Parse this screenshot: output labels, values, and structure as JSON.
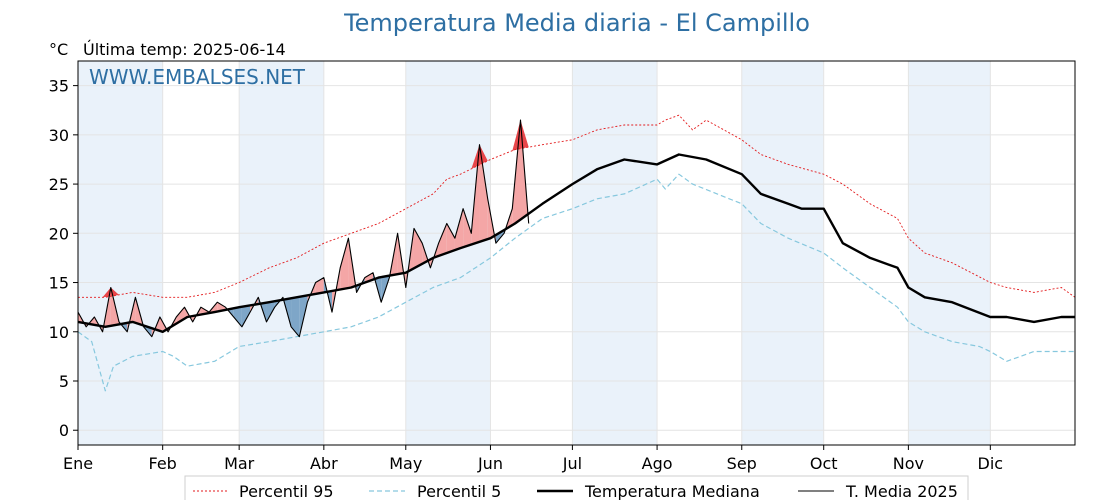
{
  "chart_data": {
    "type": "line",
    "title": "Temperatura Media diaria - El Campillo",
    "unit_label": "°C",
    "last_update": "Última temp: 2025-06-14",
    "watermark": "WWW.EMBALSES.NET",
    "ylim": [
      -1.5,
      37.5
    ],
    "y_ticks": [
      0,
      5,
      10,
      15,
      20,
      25,
      30,
      35
    ],
    "x_range_days": [
      0,
      365
    ],
    "months": [
      {
        "label": "Ene",
        "day": 0
      },
      {
        "label": "Feb",
        "day": 31
      },
      {
        "label": "Mar",
        "day": 59
      },
      {
        "label": "Abr",
        "day": 90
      },
      {
        "label": "May",
        "day": 120
      },
      {
        "label": "Jun",
        "day": 151
      },
      {
        "label": "Jul",
        "day": 181
      },
      {
        "label": "Ago",
        "day": 212
      },
      {
        "label": "Sep",
        "day": 243
      },
      {
        "label": "Oct",
        "day": 273
      },
      {
        "label": "Nov",
        "day": 304
      },
      {
        "label": "Dic",
        "day": 334
      }
    ],
    "grid": true,
    "legend_position": "bottom",
    "legend": {
      "p95": "Percentil 95",
      "p5": "Percentil 5",
      "median": "Temperatura Mediana",
      "current": "T. Media 2025"
    },
    "colors": {
      "p95": "#e31a1c",
      "p5": "#87c8de",
      "median": "#000000",
      "current": "#000000",
      "above_fill": "#f4a6a6",
      "below_fill": "#7ea6c8",
      "above_p95_fill": "#e8464a",
      "band": "#eaf2fa"
    },
    "series": [
      {
        "name": "Percentil 95",
        "key": "p95",
        "x": [
          0,
          10,
          20,
          31,
          40,
          50,
          59,
          70,
          80,
          90,
          100,
          110,
          120,
          130,
          135,
          140,
          151,
          160,
          170,
          181,
          190,
          200,
          212,
          215,
          220,
          225,
          230,
          243,
          250,
          260,
          273,
          280,
          290,
          300,
          304,
          310,
          320,
          334,
          340,
          350,
          360,
          365
        ],
        "y": [
          13.5,
          13.5,
          14.0,
          13.5,
          13.5,
          14.0,
          15.0,
          16.5,
          17.5,
          19.0,
          20.0,
          21.0,
          22.5,
          24.0,
          25.5,
          26.0,
          27.5,
          28.5,
          29.0,
          29.5,
          30.5,
          31.0,
          31.0,
          31.5,
          32.0,
          30.5,
          31.5,
          29.5,
          28.0,
          27.0,
          26.0,
          25.0,
          23.0,
          21.5,
          19.5,
          18.0,
          17.0,
          15.0,
          14.5,
          14.0,
          14.5,
          13.5
        ]
      },
      {
        "name": "Percentil 5",
        "key": "p5",
        "x": [
          0,
          5,
          8,
          10,
          13,
          20,
          31,
          35,
          40,
          50,
          59,
          70,
          80,
          90,
          100,
          110,
          120,
          130,
          140,
          151,
          160,
          170,
          181,
          190,
          200,
          212,
          215,
          220,
          225,
          243,
          250,
          260,
          273,
          280,
          290,
          300,
          304,
          310,
          320,
          330,
          334,
          340,
          350,
          360,
          365
        ],
        "y": [
          10.0,
          9.0,
          6.0,
          4.0,
          6.5,
          7.5,
          8.0,
          7.5,
          6.5,
          7.0,
          8.5,
          9.0,
          9.5,
          10.0,
          10.5,
          11.5,
          13.0,
          14.5,
          15.5,
          17.5,
          19.5,
          21.5,
          22.5,
          23.5,
          24.0,
          25.5,
          24.5,
          26.0,
          25.0,
          23.0,
          21.0,
          19.5,
          18.0,
          16.5,
          14.5,
          12.5,
          11.0,
          10.0,
          9.0,
          8.5,
          8.0,
          7.0,
          8.0,
          8.0,
          8.0
        ]
      },
      {
        "name": "Temperatura Mediana",
        "key": "median",
        "x": [
          0,
          10,
          20,
          31,
          40,
          50,
          59,
          70,
          80,
          90,
          100,
          110,
          120,
          130,
          140,
          151,
          160,
          170,
          181,
          190,
          200,
          212,
          220,
          230,
          243,
          250,
          260,
          265,
          273,
          280,
          290,
          300,
          304,
          310,
          320,
          334,
          340,
          350,
          360,
          365
        ],
        "y": [
          11.0,
          10.5,
          11.0,
          10.0,
          11.5,
          12.0,
          12.5,
          13.0,
          13.5,
          14.0,
          14.5,
          15.5,
          16.0,
          17.5,
          18.5,
          19.5,
          21.0,
          23.0,
          25.0,
          26.5,
          27.5,
          27.0,
          28.0,
          27.5,
          26.0,
          24.0,
          23.0,
          22.5,
          22.5,
          19.0,
          17.5,
          16.5,
          14.5,
          13.5,
          13.0,
          11.5,
          11.5,
          11.0,
          11.5,
          11.5
        ]
      },
      {
        "name": "T. Media 2025",
        "key": "current",
        "x": [
          0,
          3,
          6,
          9,
          12,
          15,
          18,
          21,
          24,
          27,
          30,
          33,
          36,
          39,
          42,
          45,
          48,
          51,
          54,
          57,
          60,
          63,
          66,
          69,
          72,
          75,
          78,
          81,
          84,
          87,
          90,
          93,
          96,
          99,
          102,
          105,
          108,
          111,
          114,
          117,
          120,
          123,
          126,
          129,
          132,
          135,
          138,
          141,
          144,
          147,
          150,
          153,
          156,
          159,
          162,
          165
        ],
        "y": [
          12.0,
          10.5,
          11.5,
          10.0,
          14.5,
          11.0,
          10.0,
          13.5,
          10.5,
          9.5,
          11.5,
          10.0,
          11.5,
          12.5,
          11.0,
          12.5,
          12.0,
          13.0,
          12.5,
          11.5,
          10.5,
          12.0,
          13.5,
          11.0,
          12.5,
          13.5,
          10.5,
          9.5,
          13.0,
          15.0,
          15.5,
          12.0,
          16.5,
          19.5,
          14.0,
          15.5,
          16.0,
          13.0,
          15.5,
          20.0,
          14.5,
          20.5,
          19.0,
          16.5,
          19.0,
          21.0,
          19.5,
          22.5,
          20.0,
          29.0,
          23.5,
          19.0,
          20.0,
          22.5,
          31.5,
          21.0
        ]
      }
    ]
  }
}
